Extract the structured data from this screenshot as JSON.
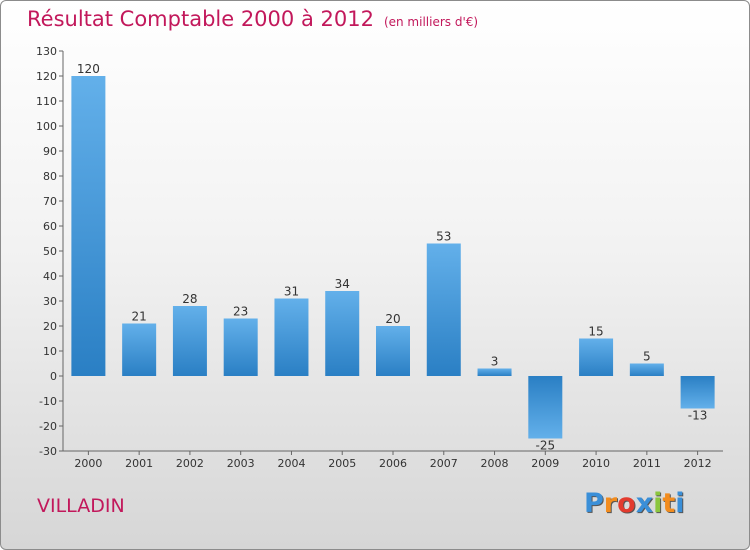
{
  "chart_data": {
    "type": "bar",
    "title": "Résultat Comptable 2000 à 2012",
    "unit_note": "(en milliers d'€)",
    "categories": [
      "2000",
      "2001",
      "2002",
      "2003",
      "2004",
      "2005",
      "2006",
      "2007",
      "2008",
      "2009",
      "2010",
      "2011",
      "2012"
    ],
    "values": [
      120,
      21,
      28,
      23,
      31,
      34,
      20,
      53,
      3,
      -25,
      15,
      5,
      -13
    ],
    "value_labels": [
      "120",
      "21",
      "28",
      "23",
      "31",
      "34",
      "20",
      "53",
      "3",
      "-25",
      "15",
      "5",
      "-13"
    ],
    "ylim": [
      -30,
      130
    ],
    "yticks": [
      -30,
      -20,
      -10,
      0,
      10,
      20,
      30,
      40,
      50,
      60,
      70,
      80,
      90,
      100,
      110,
      120,
      130
    ],
    "xlabel": "",
    "ylabel": "",
    "grid": false,
    "colors": {
      "bar_light": "#63b0ea",
      "bar_dark": "#2a7fc4",
      "title": "#c2185b",
      "axis": "#666666"
    }
  },
  "commune": "VILLADIN",
  "logo": {
    "letters": [
      "P",
      "r",
      "o",
      "x",
      "i",
      "t",
      "i"
    ],
    "colors": [
      "#3a8fd8",
      "#f28c1e",
      "#e33b2e",
      "#3a8fd8",
      "#8cc63f",
      "#f28c1e",
      "#3a8fd8"
    ]
  }
}
